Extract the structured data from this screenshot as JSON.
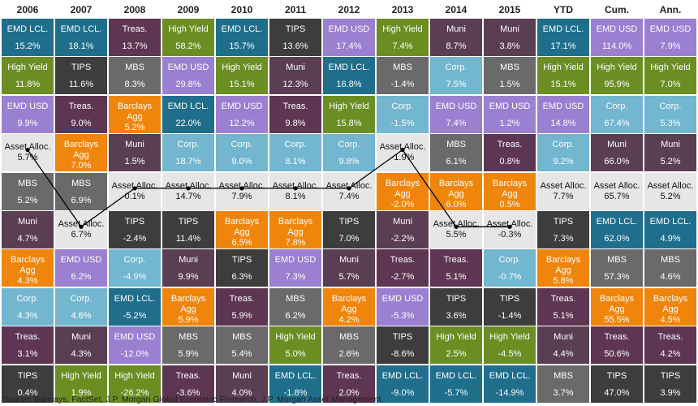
{
  "chart_data": {
    "type": "table",
    "title": "",
    "columns": [
      "2006",
      "2007",
      "2008",
      "2009",
      "2010",
      "2011",
      "2012",
      "2013",
      "2014",
      "2015",
      "YTD",
      "Cum.",
      "Ann."
    ],
    "colors": {
      "EMD LCL.": "#1f6e8c",
      "High Yield": "#6b8e23",
      "EMD USD": "#9b7fd0",
      "Asset Alloc.": "#e6e6e6",
      "MBS": "#6a6a6a",
      "Muni": "#5a3e54",
      "Barclays Agg": "#f0850c",
      "Corp.": "#72b6cf",
      "Treas.": "#5e3552",
      "TIPS": "#3d3d3d"
    },
    "cells": [
      [
        {
          "n": "EMD LCL.",
          "v": "15.2%"
        },
        {
          "n": "High Yield",
          "v": "11.8%"
        },
        {
          "n": "EMD USD",
          "v": "9.9%"
        },
        {
          "n": "Asset Alloc.",
          "v": "5.7%"
        },
        {
          "n": "MBS",
          "v": "5.2%"
        },
        {
          "n": "Muni",
          "v": "4.7%"
        },
        {
          "n": "Barclays Agg",
          "v": "4.3%"
        },
        {
          "n": "Corp.",
          "v": "4.3%"
        },
        {
          "n": "Treas.",
          "v": "3.1%"
        },
        {
          "n": "TIPS",
          "v": "0.4%"
        }
      ],
      [
        {
          "n": "EMD LCL.",
          "v": "18.1%"
        },
        {
          "n": "TIPS",
          "v": "11.6%"
        },
        {
          "n": "Treas.",
          "v": "9.0%"
        },
        {
          "n": "Barclays Agg",
          "v": "7.0%"
        },
        {
          "n": "MBS",
          "v": "6.9%"
        },
        {
          "n": "Asset Alloc.",
          "v": "6.7%"
        },
        {
          "n": "EMD USD",
          "v": "6.2%"
        },
        {
          "n": "Corp.",
          "v": "4.6%"
        },
        {
          "n": "Muni",
          "v": "4.3%"
        },
        {
          "n": "High Yield",
          "v": "1.9%"
        }
      ],
      [
        {
          "n": "Treas.",
          "v": "13.7%"
        },
        {
          "n": "MBS",
          "v": "8.3%"
        },
        {
          "n": "Barclays Agg",
          "v": "5.2%"
        },
        {
          "n": "Muni",
          "v": "1.5%"
        },
        {
          "n": "Asset Alloc.",
          "v": "0.1%"
        },
        {
          "n": "TIPS",
          "v": "-2.4%"
        },
        {
          "n": "Corp.",
          "v": "-4.9%"
        },
        {
          "n": "EMD LCL.",
          "v": "-5.2%"
        },
        {
          "n": "EMD USD",
          "v": "-12.0%"
        },
        {
          "n": "High Yield",
          "v": "-26.2%"
        }
      ],
      [
        {
          "n": "High Yield",
          "v": "58.2%"
        },
        {
          "n": "EMD USD",
          "v": "29.8%"
        },
        {
          "n": "EMD LCL.",
          "v": "22.0%"
        },
        {
          "n": "Corp.",
          "v": "18.7%"
        },
        {
          "n": "Asset Alloc.",
          "v": "14.7%"
        },
        {
          "n": "TIPS",
          "v": "11.4%"
        },
        {
          "n": "Muni",
          "v": "9.9%"
        },
        {
          "n": "Barclays Agg",
          "v": "5.9%"
        },
        {
          "n": "MBS",
          "v": "5.9%"
        },
        {
          "n": "Treas.",
          "v": "-3.6%"
        }
      ],
      [
        {
          "n": "EMD LCL.",
          "v": "15.7%"
        },
        {
          "n": "High Yield",
          "v": "15.1%"
        },
        {
          "n": "EMD USD",
          "v": "12.2%"
        },
        {
          "n": "Corp.",
          "v": "9.0%"
        },
        {
          "n": "Asset Alloc.",
          "v": "7.9%"
        },
        {
          "n": "Barclays Agg",
          "v": "6.5%"
        },
        {
          "n": "TIPS",
          "v": "6.3%"
        },
        {
          "n": "Treas.",
          "v": "5.9%"
        },
        {
          "n": "MBS",
          "v": "5.4%"
        },
        {
          "n": "Muni",
          "v": "4.0%"
        }
      ],
      [
        {
          "n": "TIPS",
          "v": "13.6%"
        },
        {
          "n": "Muni",
          "v": "12.3%"
        },
        {
          "n": "Treas.",
          "v": "9.8%"
        },
        {
          "n": "Corp.",
          "v": "8.1%"
        },
        {
          "n": "Asset Alloc.",
          "v": "8.1%"
        },
        {
          "n": "Barclays Agg",
          "v": "7.8%"
        },
        {
          "n": "EMD USD",
          "v": "7.3%"
        },
        {
          "n": "MBS",
          "v": "6.2%"
        },
        {
          "n": "High Yield",
          "v": "5.0%"
        },
        {
          "n": "EMD LCL.",
          "v": "-1.8%"
        }
      ],
      [
        {
          "n": "EMD USD",
          "v": "17.4%"
        },
        {
          "n": "EMD LCL.",
          "v": "16.8%"
        },
        {
          "n": "High Yield",
          "v": "15.8%"
        },
        {
          "n": "Corp.",
          "v": "9.8%"
        },
        {
          "n": "Asset Alloc.",
          "v": "7.4%"
        },
        {
          "n": "TIPS",
          "v": "7.0%"
        },
        {
          "n": "Muni",
          "v": "5.7%"
        },
        {
          "n": "Barclays Agg",
          "v": "4.2%"
        },
        {
          "n": "MBS",
          "v": "2.6%"
        },
        {
          "n": "Treas.",
          "v": "2.0%"
        }
      ],
      [
        {
          "n": "High Yield",
          "v": "7.4%"
        },
        {
          "n": "MBS",
          "v": "-1.4%"
        },
        {
          "n": "Corp.",
          "v": "-1.5%"
        },
        {
          "n": "Asset Alloc.",
          "v": "-1.9%"
        },
        {
          "n": "Barclays Agg",
          "v": "-2.0%"
        },
        {
          "n": "Muni",
          "v": "-2.2%"
        },
        {
          "n": "Treas.",
          "v": "-2.7%"
        },
        {
          "n": "EMD USD",
          "v": "-5.3%"
        },
        {
          "n": "TIPS",
          "v": "-8.6%"
        },
        {
          "n": "EMD LCL.",
          "v": "-9.0%"
        }
      ],
      [
        {
          "n": "Muni",
          "v": "8.7%"
        },
        {
          "n": "Corp.",
          "v": "7.5%"
        },
        {
          "n": "EMD USD",
          "v": "7.4%"
        },
        {
          "n": "MBS",
          "v": "6.1%"
        },
        {
          "n": "Barclays Agg",
          "v": "6.0%"
        },
        {
          "n": "Asset Alloc.",
          "v": "5.5%"
        },
        {
          "n": "Treas.",
          "v": "5.1%"
        },
        {
          "n": "TIPS",
          "v": "3.6%"
        },
        {
          "n": "High Yield",
          "v": "2.5%"
        },
        {
          "n": "EMD LCL.",
          "v": "-5.7%"
        }
      ],
      [
        {
          "n": "Muni",
          "v": "3.8%"
        },
        {
          "n": "MBS",
          "v": "1.5%"
        },
        {
          "n": "EMD USD",
          "v": "1.2%"
        },
        {
          "n": "Treas.",
          "v": "0.8%"
        },
        {
          "n": "Barclays Agg",
          "v": "0.5%"
        },
        {
          "n": "Asset Alloc.",
          "v": "-0.3%"
        },
        {
          "n": "Corp.",
          "v": "-0.7%"
        },
        {
          "n": "TIPS",
          "v": "-1.4%"
        },
        {
          "n": "High Yield",
          "v": "-4.5%"
        },
        {
          "n": "EMD LCL.",
          "v": "-14.9%"
        }
      ],
      [
        {
          "n": "EMD LCL.",
          "v": "17.1%"
        },
        {
          "n": "High Yield",
          "v": "15.1%"
        },
        {
          "n": "EMD USD",
          "v": "14.8%"
        },
        {
          "n": "Corp.",
          "v": "9.2%"
        },
        {
          "n": "Asset Alloc.",
          "v": "7.7%"
        },
        {
          "n": "TIPS",
          "v": "7.3%"
        },
        {
          "n": "Barclays Agg",
          "v": "5.8%"
        },
        {
          "n": "Treas.",
          "v": "5.1%"
        },
        {
          "n": "Muni",
          "v": "4.4%"
        },
        {
          "n": "MBS",
          "v": "3.7%"
        }
      ],
      [
        {
          "n": "EMD USD",
          "v": "114.0%"
        },
        {
          "n": "High Yield",
          "v": "95.9%"
        },
        {
          "n": "Corp.",
          "v": "67.4%"
        },
        {
          "n": "Muni",
          "v": "66.0%"
        },
        {
          "n": "Asset Alloc.",
          "v": "65.7%"
        },
        {
          "n": "EMD LCL.",
          "v": "62.0%"
        },
        {
          "n": "MBS",
          "v": "57.3%"
        },
        {
          "n": "Barclays Agg",
          "v": "55.5%"
        },
        {
          "n": "Treas.",
          "v": "50.6%"
        },
        {
          "n": "TIPS",
          "v": "47.0%"
        }
      ],
      [
        {
          "n": "EMD USD",
          "v": "7.9%"
        },
        {
          "n": "High Yield",
          "v": "7.0%"
        },
        {
          "n": "Corp.",
          "v": "5.3%"
        },
        {
          "n": "Muni",
          "v": "5.2%"
        },
        {
          "n": "Asset Alloc.",
          "v": "5.2%"
        },
        {
          "n": "EMD LCL.",
          "v": "4.9%"
        },
        {
          "n": "MBS",
          "v": "4.6%"
        },
        {
          "n": "Barclays Agg",
          "v": "4.5%"
        },
        {
          "n": "Treas.",
          "v": "4.2%"
        },
        {
          "n": "TIPS",
          "v": "3.9%"
        }
      ]
    ]
  },
  "source": "Source: Barclays, FactSet, J.P. Morgan Global Economic Research, J.P. Morgan Asset Management."
}
